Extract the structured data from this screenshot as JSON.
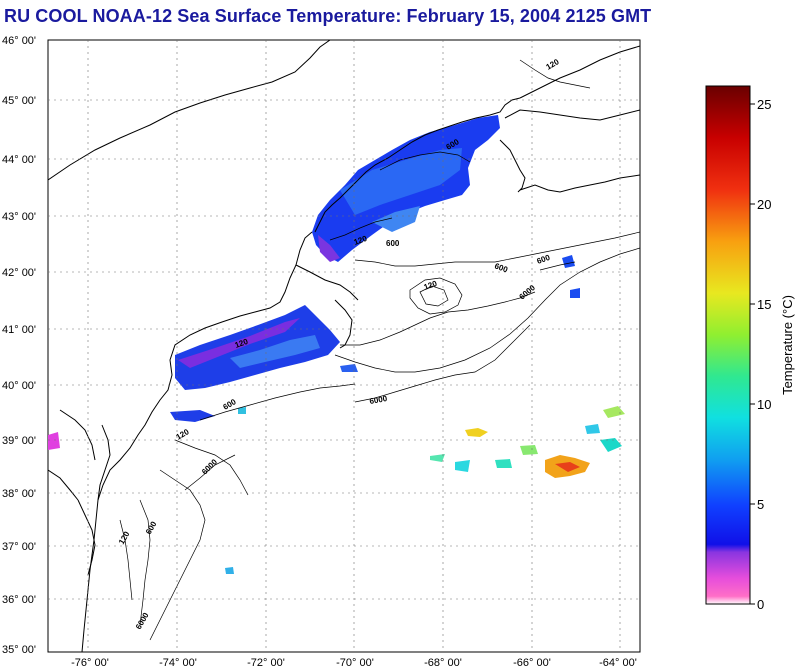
{
  "title": "RU COOL  NOAA-12  Sea Surface Temperature:  February 15, 2004 2125 GMT",
  "map": {
    "lat_labels": [
      "46° 00'",
      "45° 00'",
      "44° 00'",
      "43° 00'",
      "42° 00'",
      "41° 00'",
      "40° 00'",
      "39° 00'",
      "38° 00'",
      "37° 00'",
      "36° 00'",
      "35° 00'"
    ],
    "lon_labels": [
      "-76° 00'",
      "-74° 00'",
      "-72° 00'",
      "-70° 00'",
      "-68° 00'",
      "-66° 00'",
      "-64° 00'"
    ],
    "contour_labels": [
      "120",
      "600",
      "120",
      "600",
      "600",
      "6000",
      "600",
      "6000",
      "120",
      "6000",
      "6000",
      "600",
      "120",
      "120",
      "120",
      "600"
    ]
  },
  "colorbar": {
    "label": "Temperature (°C)",
    "ticks": [
      "25",
      "20",
      "15",
      "10",
      "5",
      "0"
    ],
    "min": 0,
    "max": 26
  },
  "colors": {
    "title": "#1a1a9e"
  }
}
